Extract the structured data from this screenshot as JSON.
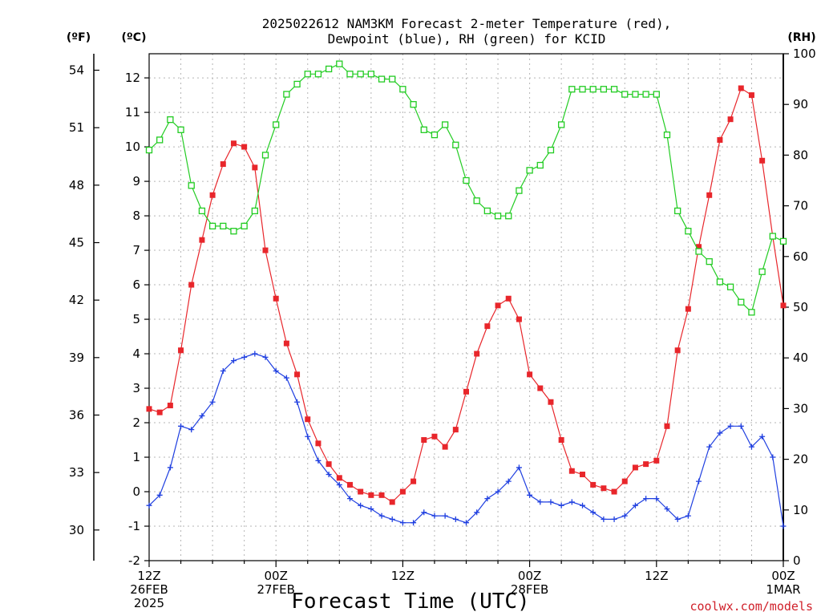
{
  "chart_data": {
    "type": "line",
    "title": "2025022612 NAM3KM Forecast 2-meter Temperature (red),",
    "subtitle": "Dewpoint (blue), RH (green) for KCID",
    "xlabel": "Forecast Time (UTC)",
    "credit": "coolwx.com/models",
    "axis_units": {
      "fahrenheit": "(ºF)",
      "celsius": "(ºC)",
      "rh": "(RH)"
    },
    "forecast_hours": [
      0,
      1,
      2,
      3,
      4,
      5,
      6,
      7,
      8,
      9,
      10,
      11,
      12,
      13,
      14,
      15,
      16,
      17,
      18,
      19,
      20,
      21,
      22,
      23,
      24,
      25,
      26,
      27,
      28,
      29,
      30,
      31,
      32,
      33,
      34,
      35,
      36,
      37,
      38,
      39,
      40,
      41,
      42,
      43,
      44,
      45,
      46,
      47,
      48,
      49,
      50,
      51,
      52,
      53,
      54,
      55,
      56,
      57,
      58,
      59,
      60
    ],
    "x_ticks": [
      {
        "hour": 0,
        "lines": [
          "12Z",
          "26FEB",
          "2025"
        ]
      },
      {
        "hour": 12,
        "lines": [
          "00Z",
          "27FEB"
        ]
      },
      {
        "hour": 24,
        "lines": [
          "12Z"
        ]
      },
      {
        "hour": 36,
        "lines": [
          "00Z",
          "28FEB"
        ]
      },
      {
        "hour": 48,
        "lines": [
          "12Z"
        ]
      },
      {
        "hour": 60,
        "lines": [
          "00Z",
          "1MAR"
        ]
      }
    ],
    "celsius_ticks": [
      -2,
      -1,
      0,
      1,
      2,
      3,
      4,
      5,
      6,
      7,
      8,
      9,
      10,
      11,
      12
    ],
    "celsius_range": [
      -2,
      12.7
    ],
    "fahrenheit_ticks": [
      30,
      33,
      36,
      39,
      42,
      45,
      48,
      51,
      54
    ],
    "rh_ticks": [
      0,
      10,
      20,
      30,
      40,
      50,
      60,
      70,
      80,
      90,
      100
    ],
    "rh_range": [
      0,
      100
    ],
    "grid": true,
    "series": [
      {
        "name": "Temperature",
        "axis": "celsius",
        "color": "#e8262b",
        "marker": "filled-square",
        "values": [
          2.4,
          2.3,
          2.5,
          4.1,
          6.0,
          7.3,
          8.6,
          9.5,
          10.1,
          10.0,
          9.4,
          7.0,
          5.6,
          4.3,
          3.4,
          2.1,
          1.4,
          0.8,
          0.4,
          0.2,
          0.0,
          -0.1,
          -0.1,
          -0.3,
          0.0,
          0.3,
          1.5,
          1.6,
          1.3,
          1.8,
          2.9,
          4.0,
          4.8,
          5.4,
          5.6,
          5.0,
          3.4,
          3.0,
          2.6,
          1.5,
          0.6,
          0.5,
          0.2,
          0.1,
          0.0,
          0.3,
          0.7,
          0.8,
          0.9,
          1.9,
          4.1,
          5.3,
          7.1,
          8.6,
          10.2,
          10.8,
          11.7,
          11.5,
          9.6,
          7.4,
          5.4
        ]
      },
      {
        "name": "Dewpoint",
        "axis": "celsius",
        "color": "#1f3fe0",
        "marker": "plus",
        "values": [
          -0.4,
          -0.1,
          0.7,
          1.9,
          1.8,
          2.2,
          2.6,
          3.5,
          3.8,
          3.9,
          4.0,
          3.9,
          3.5,
          3.3,
          2.6,
          1.6,
          0.9,
          0.5,
          0.2,
          -0.2,
          -0.4,
          -0.5,
          -0.7,
          -0.8,
          -0.9,
          -0.9,
          -0.6,
          -0.7,
          -0.7,
          -0.8,
          -0.9,
          -0.6,
          -0.2,
          0.0,
          0.3,
          0.7,
          -0.1,
          -0.3,
          -0.3,
          -0.4,
          -0.3,
          -0.4,
          -0.6,
          -0.8,
          -0.8,
          -0.7,
          -0.4,
          -0.2,
          -0.2,
          -0.5,
          -0.8,
          -0.7,
          0.3,
          1.3,
          1.7,
          1.9,
          1.9,
          1.3,
          1.6,
          1.0,
          -1.0
        ]
      },
      {
        "name": "RH",
        "axis": "rh",
        "color": "#22cc22",
        "marker": "open-square",
        "values": [
          81,
          83,
          87,
          85,
          74,
          69,
          66,
          66,
          65,
          66,
          69,
          80,
          86,
          92,
          94,
          96,
          96,
          97,
          98,
          96,
          96,
          96,
          95,
          95,
          93,
          90,
          85,
          84,
          86,
          82,
          75,
          71,
          69,
          68,
          68,
          73,
          77,
          78,
          81,
          86,
          93,
          93,
          93,
          93,
          93,
          92,
          92,
          92,
          92,
          84,
          69,
          65,
          61,
          59,
          55,
          54,
          51,
          49,
          57,
          64,
          63
        ]
      }
    ]
  }
}
